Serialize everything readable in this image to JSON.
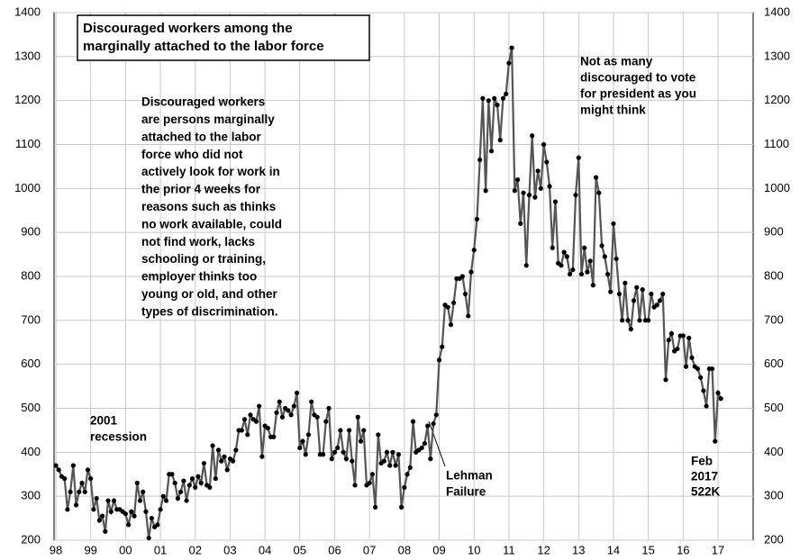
{
  "chart_data": {
    "type": "line",
    "title": [
      "Discouraged workers among the",
      "marginally attached to the labor force"
    ],
    "annotations": [
      {
        "lines": [
          "Discouraged workers",
          "are persons marginally",
          "attached to the labor",
          "force who did not",
          "actively look for work in",
          "the prior 4 weeks for",
          "reasons such as thinks",
          "no work available, could",
          "not find work, lacks",
          "schooling or training,",
          "employer thinks too",
          "young or old, and other",
          "types of discrimination."
        ]
      },
      {
        "lines": [
          "Not as many",
          "discouraged to vote",
          "for president as you",
          "might think"
        ]
      },
      {
        "lines": [
          "2001",
          "recession"
        ]
      },
      {
        "lines": [
          "Lehman",
          "Failure"
        ]
      },
      {
        "lines": [
          "Feb",
          "2017",
          "522K"
        ]
      }
    ],
    "categories": [
      "98",
      null,
      null,
      null,
      null,
      null,
      null,
      null,
      null,
      null,
      null,
      null,
      "99",
      null,
      null,
      null,
      null,
      null,
      null,
      null,
      null,
      null,
      null,
      null,
      "00",
      null,
      null,
      null,
      null,
      null,
      null,
      null,
      null,
      null,
      null,
      null,
      "01",
      null,
      null,
      null,
      null,
      null,
      null,
      null,
      null,
      null,
      null,
      null,
      "02",
      null,
      null,
      null,
      null,
      null,
      null,
      null,
      null,
      null,
      null,
      null,
      "03",
      null,
      null,
      null,
      null,
      null,
      null,
      null,
      null,
      null,
      null,
      null,
      "04",
      null,
      null,
      null,
      null,
      null,
      null,
      null,
      null,
      null,
      null,
      null,
      "05",
      null,
      null,
      null,
      null,
      null,
      null,
      null,
      null,
      null,
      null,
      null,
      "06",
      null,
      null,
      null,
      null,
      null,
      null,
      null,
      null,
      null,
      null,
      null,
      "07",
      null,
      null,
      null,
      null,
      null,
      null,
      null,
      null,
      null,
      null,
      null,
      "08",
      null,
      null,
      null,
      null,
      null,
      null,
      null,
      null,
      null,
      null,
      null,
      "09",
      null,
      null,
      null,
      null,
      null,
      null,
      null,
      null,
      null,
      null,
      null,
      "10",
      null,
      null,
      null,
      null,
      null,
      null,
      null,
      null,
      null,
      null,
      null,
      "11",
      null,
      null,
      null,
      null,
      null,
      null,
      null,
      null,
      null,
      null,
      null,
      "12",
      null,
      null,
      null,
      null,
      null,
      null,
      null,
      null,
      null,
      null,
      null,
      "13",
      null,
      null,
      null,
      null,
      null,
      null,
      null,
      null,
      null,
      null,
      null,
      "14",
      null,
      null,
      null,
      null,
      null,
      null,
      null,
      null,
      null,
      null,
      null,
      "15",
      null,
      null,
      null,
      null,
      null,
      null,
      null,
      null,
      null,
      null,
      null,
      "16",
      null,
      null,
      null,
      null,
      null,
      null,
      null,
      null,
      null,
      null,
      null,
      "17",
      null
    ],
    "series": [
      {
        "color": "#555555",
        "marker_color": "#000000",
        "values": [
          370,
          360,
          345,
          340,
          270,
          310,
          370,
          280,
          310,
          330,
          310,
          360,
          340,
          270,
          295,
          245,
          255,
          220,
          290,
          265,
          290,
          270,
          270,
          265,
          260,
          235,
          265,
          255,
          330,
          290,
          310,
          265,
          205,
          250,
          230,
          235,
          270,
          300,
          290,
          350,
          350,
          330,
          295,
          310,
          335,
          290,
          325,
          340,
          320,
          345,
          330,
          375,
          325,
          320,
          415,
          340,
          405,
          380,
          390,
          360,
          385,
          380,
          405,
          450,
          450,
          475,
          440,
          485,
          475,
          470,
          505,
          390,
          460,
          455,
          435,
          435,
          490,
          515,
          480,
          500,
          495,
          485,
          505,
          535,
          410,
          425,
          395,
          440,
          515,
          485,
          480,
          395,
          395,
          470,
          500,
          385,
          400,
          410,
          450,
          400,
          385,
          450,
          380,
          325,
          480,
          425,
          450,
          325,
          330,
          350,
          275,
          440,
          375,
          380,
          400,
          370,
          400,
          370,
          395,
          275,
          320,
          350,
          365,
          470,
          400,
          405,
          410,
          420,
          460,
          385,
          465,
          485,
          610,
          640,
          735,
          730,
          690,
          740,
          795,
          795,
          800,
          760,
          710,
          810,
          860,
          930,
          1065,
          1205,
          995,
          1200,
          1085,
          1205,
          1190,
          1110,
          1205,
          1215,
          1285,
          1320,
          995,
          1020,
          920,
          990,
          825,
          985,
          1120,
          980,
          1040,
          1000,
          1100,
          1060,
          1005,
          865,
          970,
          830,
          825,
          855,
          845,
          805,
          815,
          985,
          1070,
          805,
          865,
          810,
          835,
          780,
          1025,
          990,
          870,
          845,
          805,
          765,
          920,
          840,
          760,
          700,
          785,
          700,
          680,
          745,
          775,
          700,
          770,
          700,
          700,
          760,
          730,
          735,
          745,
          760,
          565,
          655,
          670,
          630,
          635,
          665,
          665,
          595,
          660,
          615,
          595,
          590,
          570,
          540,
          505,
          590,
          590,
          425,
          535,
          522
        ]
      }
    ],
    "ylim": [
      200,
      1400
    ],
    "yticks": [
      200,
      300,
      400,
      500,
      600,
      700,
      800,
      900,
      1000,
      1100,
      1200,
      1300,
      1400
    ],
    "grid": true
  }
}
